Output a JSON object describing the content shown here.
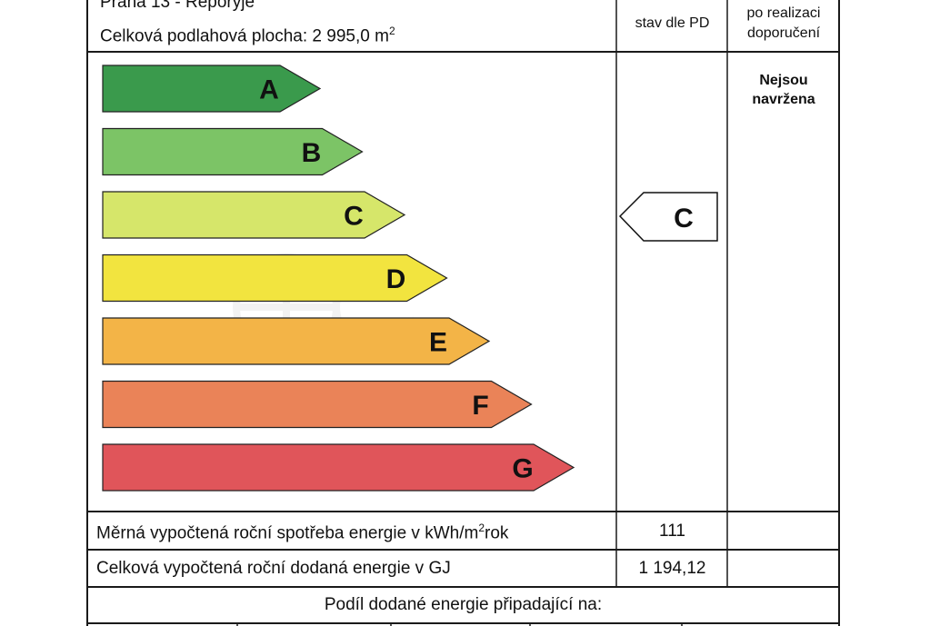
{
  "header": {
    "location": "Praha 13 - Řeporyje",
    "floor_area_label": "Celková podlahová plocha: 2 995,0 m",
    "floor_area_sup": "2"
  },
  "columns": {
    "current": "stav dle PD",
    "after_line1": "po realizaci",
    "after_line2": "doporučení"
  },
  "classes": [
    {
      "letter": "A",
      "color": "#3a9a4c"
    },
    {
      "letter": "B",
      "color": "#7cc466"
    },
    {
      "letter": "C",
      "color": "#d6e66a"
    },
    {
      "letter": "D",
      "color": "#f2e43f"
    },
    {
      "letter": "E",
      "color": "#f3b447"
    },
    {
      "letter": "F",
      "color": "#ea8358"
    },
    {
      "letter": "G",
      "color": "#e0555a"
    }
  ],
  "current_class": "C",
  "after_note_line1": "Nejsou",
  "after_note_line2": "navržena",
  "rows": {
    "specific_label": "Měrná vypočtená roční spotřeba energie v kWh/m",
    "specific_sup": "2",
    "specific_suffix": "rok",
    "specific_value": "111",
    "total_label": "Celková vypočtená roční dodaná energie v GJ",
    "total_value": "1 194,12",
    "share_label": "Podíl dodané energie připadající na:"
  }
}
